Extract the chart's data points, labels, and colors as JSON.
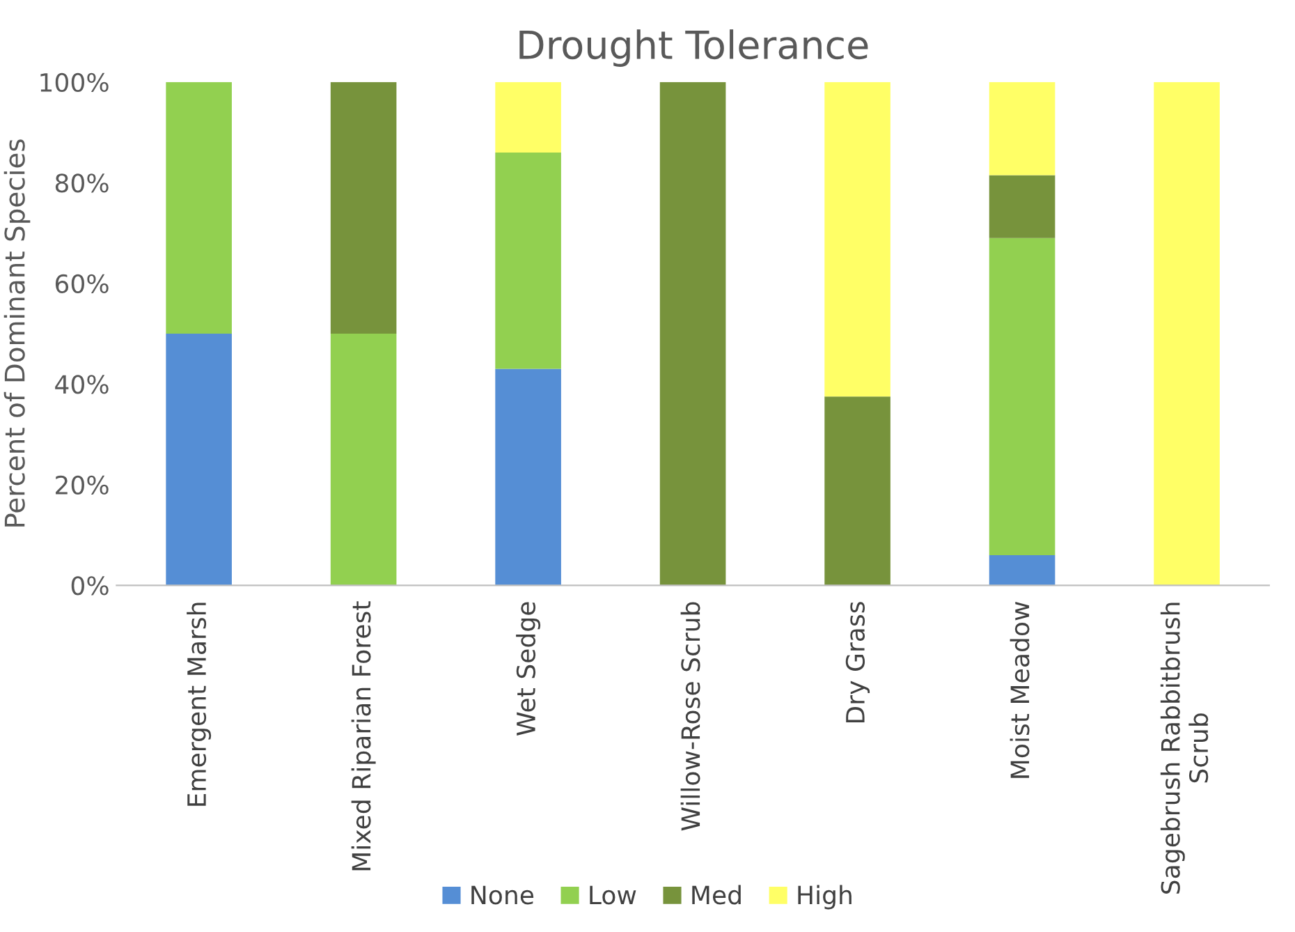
{
  "chart_data": {
    "type": "bar",
    "title": "Drought Tolerance",
    "ylabel": "Percent of Dominant Species",
    "stacked": true,
    "categories": [
      "Emergent Marsh",
      "Mixed Riparian Forest",
      "Wet Sedge",
      "Willow-Rose Scrub",
      "Dry Grass",
      "Moist Meadow",
      "Sagebrush Rabbitbrush Scrub"
    ],
    "series": [
      {
        "name": "None",
        "color": "#558ed5",
        "values": [
          50,
          null,
          43,
          null,
          null,
          6,
          null
        ]
      },
      {
        "name": "Low",
        "color": "#92d050",
        "values": [
          50,
          50,
          43,
          null,
          null,
          63,
          null
        ]
      },
      {
        "name": "Med",
        "color": "#77933c",
        "values": [
          null,
          50,
          null,
          100,
          37.5,
          12.5,
          null
        ]
      },
      {
        "name": "High",
        "color": "#ffff66",
        "values": [
          null,
          null,
          14,
          null,
          62.5,
          18.5,
          100
        ]
      }
    ],
    "ylim": [
      0,
      100
    ],
    "yticks": [
      {
        "value": 0,
        "label": "0%"
      },
      {
        "value": 20,
        "label": "20%"
      },
      {
        "value": 40,
        "label": "40%"
      },
      {
        "value": 60,
        "label": "60%"
      },
      {
        "value": 80,
        "label": "80%"
      },
      {
        "value": 100,
        "label": "100%"
      }
    ],
    "grid": false,
    "legend": "bottom"
  }
}
